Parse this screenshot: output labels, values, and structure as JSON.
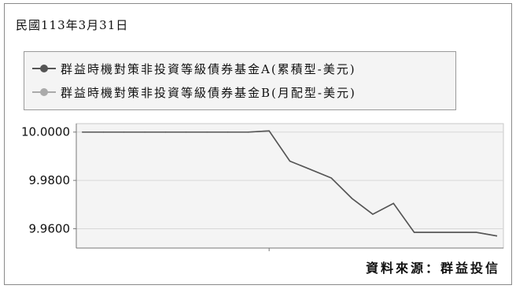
{
  "date_label": "民國113年3月31日",
  "source_label": "資料來源：群益投信",
  "colors": {
    "series_a": "#555555",
    "series_b": "#aaaaaa",
    "grid": "#d8d8d8",
    "plot_bg": "#f4f4f4",
    "axis": "#777777"
  },
  "chart_data": {
    "type": "line",
    "title": "",
    "xlabel": "",
    "ylabel": "",
    "ylim": [
      9.952,
      10.0035
    ],
    "yticks": [
      10.0,
      9.98,
      9.96
    ],
    "ytick_labels": [
      "10.0000",
      "9.9800",
      "9.9600"
    ],
    "grid": true,
    "legend_position": "top-left",
    "x": [
      0,
      1,
      2,
      3,
      4,
      5,
      6,
      7,
      8,
      9,
      10,
      11,
      12,
      13,
      14,
      15,
      16,
      17,
      18,
      19,
      20
    ],
    "series": [
      {
        "name": "群益時機對策非投資等級債券基金A(累積型-美元)",
        "values": [
          10.0,
          10.0,
          10.0,
          10.0,
          10.0,
          10.0,
          10.0,
          10.0,
          10.0,
          10.0005,
          9.988,
          9.9845,
          9.981,
          9.9725,
          9.966,
          9.9705,
          9.9585,
          9.9585,
          9.9585,
          9.9585,
          9.957
        ]
      },
      {
        "name": "群益時機對策非投資等級債券基金B(月配型-美元)",
        "values": [
          10.0,
          10.0,
          10.0,
          10.0,
          10.0,
          10.0,
          10.0,
          10.0,
          10.0,
          10.0005,
          9.988,
          9.9845,
          9.981,
          9.9725,
          9.966,
          9.9705,
          9.9585,
          9.9585,
          9.9585,
          9.9585,
          9.957
        ]
      }
    ]
  }
}
